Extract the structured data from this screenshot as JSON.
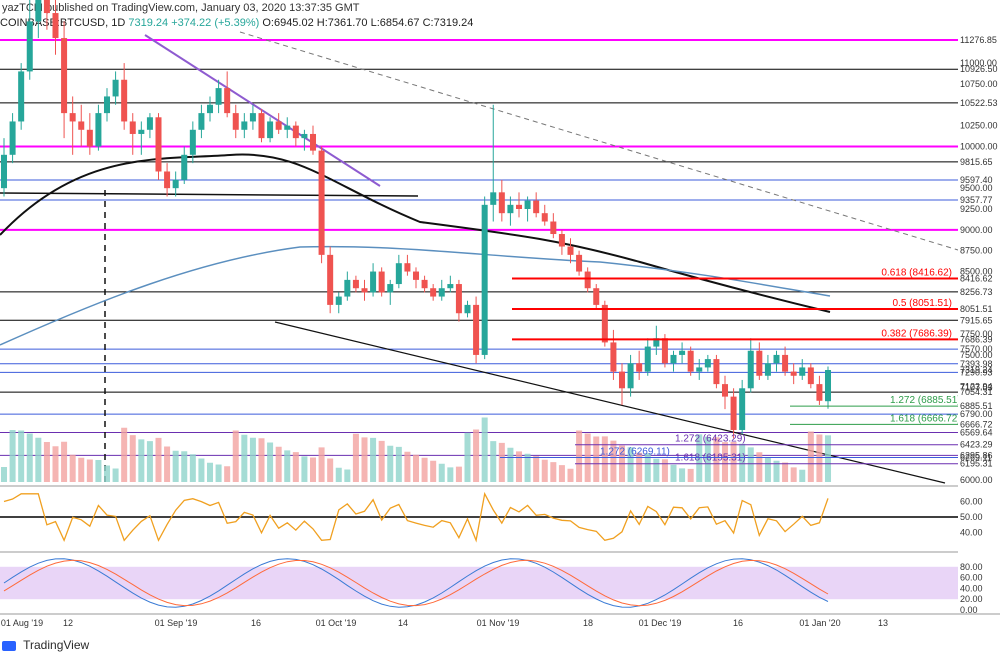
{
  "header": {
    "author_line": "yazTCM published on TradingView.com, January 03, 2020 13:37:35 GMT",
    "symbol": "COINBASE:BTCUSD, 1D",
    "last": "7319.24",
    "change": "+374.22 (+5.39%)",
    "ohlc": "O:6945.02 H:7361.70 L:6854.67 C:7319.24"
  },
  "footer": {
    "brand": "TradingView"
  },
  "colors": {
    "up": "#26a69a",
    "down": "#ef5350",
    "magenta": "#ff00ff",
    "red": "#ff0000",
    "ma_black": "#000000",
    "ma_blue": "#5b8fbf",
    "rsi": "#f0a020",
    "stoch_k": "#3a7bd5",
    "stoch_d": "#ff6a3a",
    "stoch_band": "#e9d5f7"
  },
  "chart_data": {
    "type": "candlestick",
    "price_axis_labels": [
      "11276.85",
      "11000.00",
      "10926.50",
      "10750.00",
      "10522.53",
      "10250.00",
      "10000.00",
      "9815.65",
      "9597.40",
      "9500.00",
      "9357.77",
      "9250.00",
      "9000.00",
      "8750.00",
      "8500.00",
      "8416.62",
      "8256.73",
      "8051.51",
      "7915.65",
      "7750.00",
      "7686.39",
      "7570.00",
      "7500.00",
      "7393.98",
      "7319.24",
      "7290.93",
      "7123.94",
      "7107.03",
      "7054.31",
      "6885.51",
      "6790.00",
      "6666.72",
      "6569.64",
      "6423.29",
      "6295.86",
      "6269.11",
      "6195.31",
      "6000.00"
    ],
    "time_axis_labels": [
      "01 Aug '19",
      "12",
      "01 Sep '19",
      "16",
      "01 Oct '19",
      "14",
      "01 Nov '19",
      "18",
      "01 Dec '19",
      "16",
      "01 Jan '20",
      "13"
    ],
    "horizontal_levels": [
      {
        "value": 11276.85,
        "color": "magenta"
      },
      {
        "value": 10926.5,
        "color": "black"
      },
      {
        "value": 10522.53,
        "color": "black"
      },
      {
        "value": 10000.0,
        "color": "magenta"
      },
      {
        "value": 9815.65,
        "color": "black"
      },
      {
        "value": 9597.4,
        "color": "blue"
      },
      {
        "value": 9357.77,
        "color": "blue"
      },
      {
        "value": 9000.0,
        "color": "magenta"
      },
      {
        "value": 8256.73,
        "color": "black"
      },
      {
        "value": 7915.65,
        "color": "black"
      },
      {
        "value": 7570.0,
        "color": "blue"
      },
      {
        "value": 7393.98,
        "color": "blue"
      },
      {
        "value": 7290.93,
        "color": "blue"
      },
      {
        "value": 7054.31,
        "color": "black"
      },
      {
        "value": 6790.0,
        "color": "blue"
      },
      {
        "value": 6569.64,
        "color": "purple"
      },
      {
        "value": 6295.86,
        "color": "purple"
      }
    ],
    "fib_levels": [
      {
        "label": "0.618 (8416.62)",
        "value": 8416.62,
        "color": "red"
      },
      {
        "label": "0.5 (8051.51)",
        "value": 8051.51,
        "color": "red"
      },
      {
        "label": "0.382 (7686.39)",
        "value": 7686.39,
        "color": "red"
      },
      {
        "label": "1.272 (6885.51)",
        "value": 6885.51,
        "color": "green"
      },
      {
        "label": "1.618 (6666.72)",
        "value": 6666.72,
        "color": "green"
      },
      {
        "label": "1.272 (6423.29)",
        "value": 6423.29,
        "color": "purple"
      },
      {
        "label": "1.618 (6195.31)",
        "value": 6195.31,
        "color": "purple"
      },
      {
        "label": "1.272 (6269.11)",
        "value": 6269.11,
        "color": "blue"
      }
    ],
    "rsi": {
      "axis_labels": [
        "60.00",
        "50.00",
        "40.00"
      ],
      "midline": 50
    },
    "stoch": {
      "axis_labels": [
        "80.00",
        "60.00",
        "40.00",
        "20.00",
        "0.00"
      ],
      "band": [
        20,
        80
      ]
    },
    "candles_ohlc": [
      [
        9500,
        10100,
        9400,
        9900
      ],
      [
        9900,
        10400,
        9800,
        10300
      ],
      [
        10300,
        11000,
        10200,
        10900
      ],
      [
        10900,
        11800,
        10800,
        11500
      ],
      [
        11500,
        12300,
        11300,
        12000
      ],
      [
        12000,
        12200,
        11400,
        11600
      ],
      [
        11600,
        11800,
        11100,
        11300
      ],
      [
        11300,
        11500,
        10100,
        10400
      ],
      [
        10400,
        10600,
        9900,
        10300
      ],
      [
        10300,
        10500,
        10000,
        10200
      ],
      [
        10200,
        10400,
        9900,
        10000
      ],
      [
        10000,
        10500,
        9950,
        10400
      ],
      [
        10400,
        10700,
        10300,
        10600
      ],
      [
        10600,
        10900,
        10500,
        10800
      ],
      [
        10800,
        11000,
        10200,
        10300
      ],
      [
        10300,
        10400,
        9900,
        10150
      ],
      [
        10150,
        10300,
        9900,
        10200
      ],
      [
        10200,
        10400,
        10100,
        10350
      ],
      [
        10350,
        10400,
        9600,
        9700
      ],
      [
        9700,
        9800,
        9400,
        9500
      ],
      [
        9500,
        9700,
        9400,
        9600
      ],
      [
        9600,
        10000,
        9550,
        9900
      ],
      [
        9900,
        10300,
        9800,
        10200
      ],
      [
        10200,
        10500,
        10100,
        10400
      ],
      [
        10400,
        10600,
        10300,
        10500
      ],
      [
        10500,
        10800,
        10400,
        10700
      ],
      [
        10700,
        10900,
        10350,
        10400
      ],
      [
        10400,
        10500,
        10100,
        10200
      ],
      [
        10200,
        10400,
        10100,
        10300
      ],
      [
        10300,
        10500,
        10200,
        10400
      ],
      [
        10400,
        10450,
        10050,
        10100
      ],
      [
        10100,
        10350,
        10050,
        10300
      ],
      [
        10300,
        10400,
        10150,
        10200
      ],
      [
        10200,
        10350,
        10100,
        10250
      ],
      [
        10250,
        10300,
        10000,
        10100
      ],
      [
        10100,
        10200,
        9950,
        10150
      ],
      [
        10150,
        10250,
        9900,
        9950
      ],
      [
        9950,
        10000,
        8600,
        8700
      ],
      [
        8700,
        8800,
        8000,
        8100
      ],
      [
        8100,
        8250,
        8000,
        8200
      ],
      [
        8200,
        8500,
        8150,
        8400
      ],
      [
        8400,
        8450,
        8250,
        8300
      ],
      [
        8300,
        8400,
        8150,
        8250
      ],
      [
        8250,
        8600,
        8200,
        8500
      ],
      [
        8500,
        8550,
        8200,
        8250
      ],
      [
        8250,
        8400,
        8100,
        8350
      ],
      [
        8350,
        8700,
        8300,
        8600
      ],
      [
        8600,
        8700,
        8450,
        8500
      ],
      [
        8500,
        8550,
        8300,
        8400
      ],
      [
        8400,
        8450,
        8250,
        8300
      ],
      [
        8300,
        8350,
        8150,
        8200
      ],
      [
        8200,
        8400,
        8150,
        8300
      ],
      [
        8300,
        8450,
        8250,
        8350
      ],
      [
        8350,
        8400,
        7900,
        8000
      ],
      [
        8000,
        8150,
        7950,
        8100
      ],
      [
        8100,
        8200,
        7400,
        7500
      ],
      [
        7500,
        9400,
        7450,
        9300
      ],
      [
        9300,
        10500,
        9100,
        9450
      ],
      [
        9450,
        9600,
        9100,
        9200
      ],
      [
        9200,
        9400,
        9050,
        9300
      ],
      [
        9300,
        9450,
        9150,
        9250
      ],
      [
        9250,
        9400,
        9100,
        9350
      ],
      [
        9350,
        9450,
        9150,
        9200
      ],
      [
        9200,
        9300,
        9050,
        9100
      ],
      [
        9100,
        9200,
        8900,
        8950
      ],
      [
        8950,
        9000,
        8700,
        8800
      ],
      [
        8800,
        8900,
        8600,
        8700
      ],
      [
        8700,
        8750,
        8450,
        8500
      ],
      [
        8500,
        8550,
        8250,
        8300
      ],
      [
        8300,
        8350,
        8050,
        8100
      ],
      [
        8100,
        8150,
        7600,
        7650
      ],
      [
        7650,
        7800,
        7200,
        7300
      ],
      [
        7300,
        7400,
        6900,
        7100
      ],
      [
        7100,
        7500,
        7000,
        7400
      ],
      [
        7400,
        7550,
        7200,
        7300
      ],
      [
        7300,
        7700,
        7250,
        7600
      ],
      [
        7600,
        7850,
        7500,
        7700
      ],
      [
        7700,
        7750,
        7350,
        7400
      ],
      [
        7400,
        7550,
        7300,
        7500
      ],
      [
        7500,
        7650,
        7400,
        7550
      ],
      [
        7550,
        7600,
        7250,
        7300
      ],
      [
        7300,
        7450,
        7200,
        7350
      ],
      [
        7350,
        7500,
        7300,
        7450
      ],
      [
        7450,
        7500,
        7100,
        7150
      ],
      [
        7150,
        7250,
        6850,
        7000
      ],
      [
        7000,
        7100,
        6500,
        6600
      ],
      [
        6600,
        7200,
        6550,
        7100
      ],
      [
        7100,
        7700,
        7050,
        7550
      ],
      [
        7550,
        7650,
        7200,
        7250
      ],
      [
        7250,
        7500,
        7200,
        7400
      ],
      [
        7400,
        7550,
        7300,
        7500
      ],
      [
        7500,
        7600,
        7250,
        7300
      ],
      [
        7300,
        7400,
        7150,
        7250
      ],
      [
        7250,
        7450,
        7200,
        7350
      ],
      [
        7350,
        7400,
        7100,
        7150
      ],
      [
        7150,
        7250,
        6900,
        6950
      ],
      [
        6945.02,
        7361.7,
        6854.67,
        7319.24
      ]
    ]
  }
}
